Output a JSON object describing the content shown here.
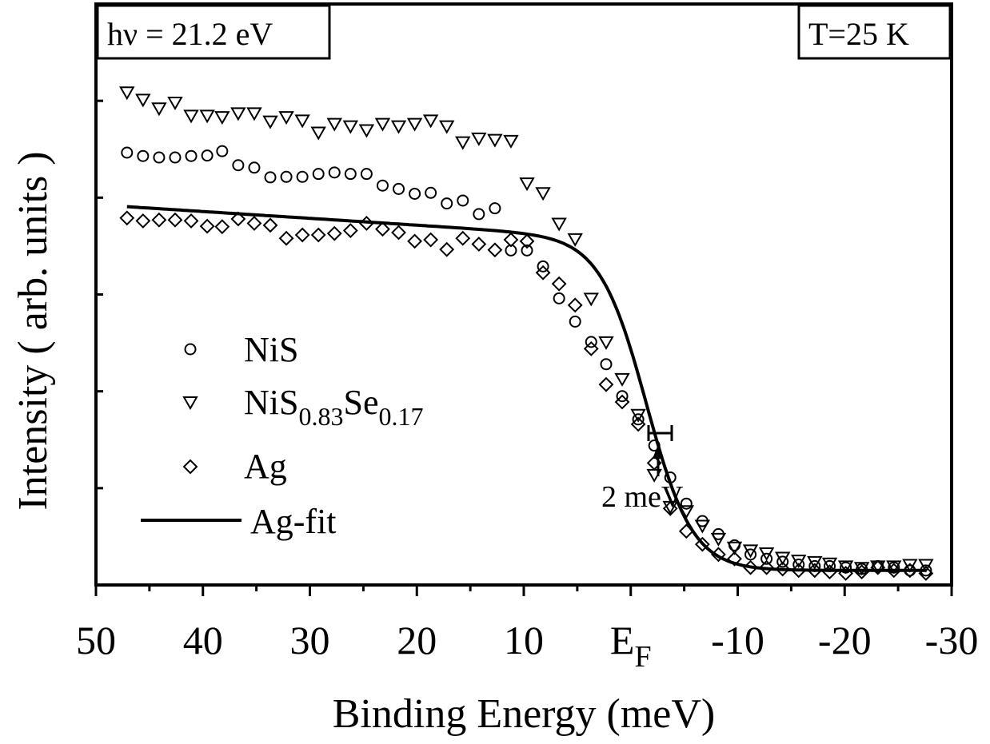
{
  "chart_data": {
    "type": "scatter",
    "xlabel": "Binding Energy (meV)",
    "ylabel": "Intensity ( arb. units )",
    "xlim": [
      50,
      -30
    ],
    "ylim": [
      0,
      1.2
    ],
    "x_reversed": true,
    "y_tick_labels_shown": false,
    "x_ticks": [
      {
        "value": 50,
        "label": "50"
      },
      {
        "value": 40,
        "label": "40"
      },
      {
        "value": 30,
        "label": "30"
      },
      {
        "value": 20,
        "label": "20"
      },
      {
        "value": 10,
        "label": "10"
      },
      {
        "value": 0,
        "label": "E",
        "sub": "F"
      },
      {
        "value": -10,
        "label": "-10"
      },
      {
        "value": -20,
        "label": "-20"
      },
      {
        "value": -30,
        "label": "-30"
      }
    ],
    "legend_position": "left-center",
    "annotations": {
      "photon_energy": "hν = 21.2 eV",
      "temperature": "T=25 K",
      "resolution_label": "2 meV",
      "resolution_marker_x": -2.2
    },
    "series": [
      {
        "name": "NiS",
        "marker": "circle",
        "x": [
          47.1,
          45.6,
          44.1,
          42.6,
          41.1,
          39.6,
          38.2,
          36.7,
          35.2,
          33.7,
          32.2,
          30.7,
          29.2,
          27.7,
          26.2,
          24.7,
          23.2,
          21.7,
          20.2,
          18.7,
          17.2,
          15.7,
          14.2,
          12.7,
          11.2,
          9.7,
          8.2,
          6.7,
          5.2,
          3.7,
          2.3,
          0.8,
          -0.7,
          -2.2,
          -3.7,
          -5.2,
          -6.7,
          -8.2,
          -9.7,
          -11.2,
          -12.7,
          -14.2,
          -15.7,
          -17.2,
          -18.6,
          -20.1,
          -21.6,
          -23.1,
          -24.6,
          -26.1,
          -27.6
        ],
        "y": [
          0.893,
          0.886,
          0.883,
          0.883,
          0.886,
          0.887,
          0.896,
          0.867,
          0.862,
          0.842,
          0.843,
          0.843,
          0.849,
          0.852,
          0.849,
          0.849,
          0.825,
          0.818,
          0.808,
          0.81,
          0.788,
          0.794,
          0.766,
          0.778,
          0.691,
          0.691,
          0.658,
          0.592,
          0.544,
          0.502,
          0.456,
          0.39,
          0.342,
          0.288,
          0.222,
          0.168,
          0.132,
          0.105,
          0.082,
          0.063,
          0.054,
          0.048,
          0.042,
          0.039,
          0.039,
          0.036,
          0.033,
          0.039,
          0.036,
          0.03,
          0.03
        ]
      },
      {
        "name": "NiS0.83Se0.17",
        "name_base": "NiS",
        "name_sub1": "0.83",
        "name_mid": "Se",
        "name_sub2": "0.17",
        "marker": "triangle-down",
        "x": [
          47.1,
          45.6,
          44.1,
          42.6,
          41.1,
          39.6,
          38.2,
          36.7,
          35.2,
          33.7,
          32.2,
          30.7,
          29.2,
          27.7,
          26.2,
          24.7,
          23.2,
          21.7,
          20.2,
          18.7,
          17.2,
          15.7,
          14.2,
          12.7,
          11.2,
          9.7,
          8.2,
          6.7,
          5.2,
          3.7,
          2.3,
          0.8,
          -0.7,
          -2.2,
          -3.7,
          -5.2,
          -6.7,
          -8.2,
          -9.7,
          -11.2,
          -12.7,
          -14.2,
          -15.7,
          -17.2,
          -18.6,
          -20.1,
          -21.6,
          -23.1,
          -24.6,
          -26.1,
          -27.6
        ],
        "y": [
          1.018,
          1.003,
          0.985,
          0.997,
          0.97,
          0.97,
          0.967,
          0.975,
          0.975,
          0.958,
          0.967,
          0.96,
          0.935,
          0.953,
          0.948,
          0.94,
          0.953,
          0.948,
          0.953,
          0.96,
          0.948,
          0.915,
          0.923,
          0.92,
          0.918,
          0.83,
          0.81,
          0.747,
          0.715,
          0.592,
          0.502,
          0.426,
          0.352,
          0.228,
          0.162,
          0.153,
          0.123,
          0.096,
          0.078,
          0.072,
          0.066,
          0.057,
          0.051,
          0.048,
          0.045,
          0.039,
          0.036,
          0.039,
          0.039,
          0.042,
          0.042
        ]
      },
      {
        "name": "Ag",
        "marker": "diamond",
        "x": [
          47.1,
          45.6,
          44.1,
          42.6,
          41.1,
          39.6,
          38.2,
          36.7,
          35.2,
          33.7,
          32.2,
          30.7,
          29.2,
          27.7,
          26.2,
          24.7,
          23.2,
          21.7,
          20.2,
          18.7,
          17.2,
          15.7,
          14.2,
          12.7,
          11.2,
          9.7,
          8.2,
          6.7,
          5.2,
          3.7,
          2.3,
          0.8,
          -0.7,
          -2.2,
          -3.7,
          -5.2,
          -6.7,
          -8.2,
          -9.7,
          -11.2,
          -12.7,
          -14.2,
          -15.7,
          -17.2,
          -18.6,
          -20.1,
          -21.6,
          -23.1,
          -24.6,
          -26.1,
          -27.6
        ],
        "y": [
          0.758,
          0.752,
          0.754,
          0.754,
          0.752,
          0.741,
          0.74,
          0.756,
          0.747,
          0.743,
          0.716,
          0.723,
          0.723,
          0.726,
          0.732,
          0.747,
          0.735,
          0.728,
          0.71,
          0.713,
          0.693,
          0.716,
          0.704,
          0.692,
          0.713,
          0.71,
          0.645,
          0.622,
          0.578,
          0.488,
          0.414,
          0.378,
          0.332,
          0.252,
          0.158,
          0.111,
          0.084,
          0.063,
          0.054,
          0.036,
          0.036,
          0.033,
          0.03,
          0.03,
          0.027,
          0.024,
          0.027,
          0.036,
          0.03,
          0.03,
          0.024
        ]
      },
      {
        "name": "Ag-fit",
        "marker": "line",
        "fit": {
          "ef": -1.5,
          "width": 2.16,
          "base": 0.03,
          "plateau": 0.685,
          "slope": 0.00141
        }
      }
    ]
  }
}
